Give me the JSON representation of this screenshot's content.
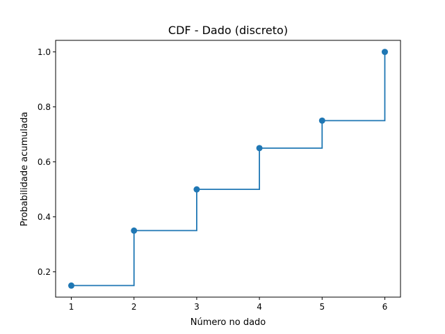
{
  "chart_data": {
    "type": "line",
    "drawstyle": "steps-post",
    "title": "CDF - Dado (discreto)",
    "xlabel": "Número no dado",
    "ylabel": "Probabilidade acumulada",
    "x": [
      1,
      2,
      3,
      4,
      5,
      6
    ],
    "y": [
      0.15,
      0.35,
      0.5,
      0.65,
      0.75,
      1.0
    ],
    "xlim": [
      0.75,
      6.25
    ],
    "ylim": [
      0.108,
      1.042
    ],
    "xticks": [
      1,
      2,
      3,
      4,
      5,
      6
    ],
    "xtick_labels": [
      "1",
      "2",
      "3",
      "4",
      "5",
      "6"
    ],
    "yticks": [
      0.2,
      0.4,
      0.6,
      0.8,
      1.0
    ],
    "ytick_labels": [
      "0.2",
      "0.4",
      "0.6",
      "0.8",
      "1.0"
    ],
    "marker": "circle",
    "grid": false,
    "legend": false,
    "colors": {
      "series": "#1f77b4"
    }
  }
}
